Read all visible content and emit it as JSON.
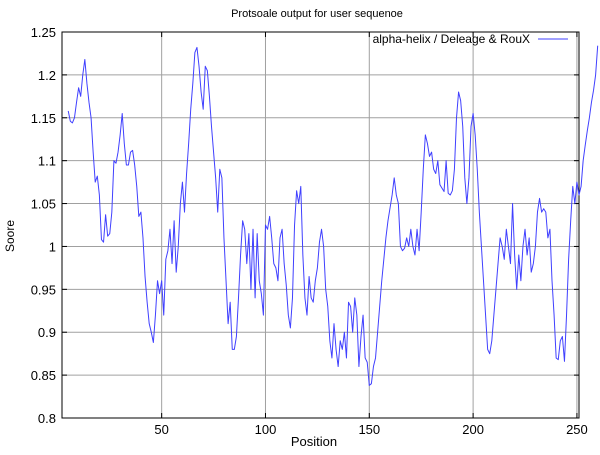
{
  "chart_data": {
    "type": "line",
    "title": "Protsoale output for user sequenoe",
    "xlabel": "Position",
    "ylabel": "Soore",
    "xlim": [
      2,
      251
    ],
    "ylim": [
      0.8,
      1.25
    ],
    "x_ticks": [
      50,
      100,
      150,
      200,
      250
    ],
    "x_tick_labels": [
      "50",
      "100",
      "150",
      "200",
      "250"
    ],
    "y_ticks": [
      0.8,
      0.85,
      0.9,
      0.95,
      1.0,
      1.05,
      1.1,
      1.15,
      1.2,
      1.25
    ],
    "y_tick_labels": [
      "0.8",
      "0.85",
      "0.9",
      "0.95",
      "1",
      "1.05",
      "1.1",
      "1.15",
      "1.2",
      "1.25"
    ],
    "grid": true,
    "legend_position": "top-right",
    "series": [
      {
        "name": "alpha-helix / Deleage & RouX",
        "color": "#4040ff",
        "x_start": 5,
        "x_step": 1,
        "values": [
          1.158,
          1.146,
          1.144,
          1.15,
          1.168,
          1.185,
          1.175,
          1.2,
          1.218,
          1.19,
          1.168,
          1.15,
          1.11,
          1.075,
          1.082,
          1.06,
          1.008,
          1.005,
          1.037,
          1.012,
          1.015,
          1.04,
          1.1,
          1.097,
          1.11,
          1.13,
          1.155,
          1.12,
          1.095,
          1.095,
          1.11,
          1.112,
          1.095,
          1.07,
          1.035,
          1.04,
          1.01,
          0.965,
          0.935,
          0.91,
          0.9,
          0.888,
          0.92,
          0.96,
          0.945,
          0.96,
          0.92,
          0.985,
          0.995,
          1.02,
          0.98,
          1.03,
          0.97,
          1.0,
          1.05,
          1.075,
          1.04,
          1.085,
          1.12,
          1.16,
          1.19,
          1.226,
          1.232,
          1.21,
          1.18,
          1.16,
          1.21,
          1.205,
          1.175,
          1.14,
          1.11,
          1.08,
          1.04,
          1.09,
          1.08,
          1.01,
          0.96,
          0.91,
          0.935,
          0.88,
          0.88,
          0.895,
          0.94,
          0.99,
          1.03,
          1.02,
          0.98,
          1.015,
          0.95,
          1.02,
          0.94,
          1.015,
          0.96,
          0.945,
          0.92,
          1.025,
          1.02,
          1.035,
          1.01,
          0.98,
          0.975,
          0.96,
          1.01,
          1.02,
          0.98,
          0.955,
          0.92,
          0.905,
          0.94,
          1.025,
          1.065,
          1.05,
          1.07,
          0.99,
          0.94,
          0.92,
          0.965,
          0.94,
          0.935,
          0.96,
          0.975,
          1.005,
          1.02,
          1.0,
          0.95,
          0.93,
          0.89,
          0.87,
          0.91,
          0.88,
          0.86,
          0.89,
          0.88,
          0.9,
          0.87,
          0.935,
          0.93,
          0.9,
          0.94,
          0.92,
          0.86,
          0.895,
          0.92,
          0.87,
          0.865,
          0.838,
          0.84,
          0.86,
          0.87,
          0.9,
          0.93,
          0.96,
          0.985,
          1.01,
          1.03,
          1.045,
          1.06,
          1.08,
          1.06,
          1.05,
          1.0,
          0.995,
          0.998,
          1.01,
          1.0,
          1.02,
          1.0,
          0.99,
          1.02,
          0.995,
          1.04,
          1.09,
          1.13,
          1.12,
          1.105,
          1.11,
          1.09,
          1.085,
          1.1,
          1.072,
          1.068,
          1.064,
          1.1,
          1.062,
          1.06,
          1.065,
          1.09,
          1.15,
          1.18,
          1.17,
          1.14,
          1.08,
          1.05,
          1.08,
          1.14,
          1.155,
          1.13,
          1.09,
          1.04,
          1.0,
          0.96,
          0.92,
          0.88,
          0.875,
          0.89,
          0.92,
          0.95,
          0.98,
          1.01,
          1.0,
          0.985,
          1.02,
          1.0,
          0.98,
          1.05,
          0.99,
          0.95,
          0.99,
          0.96,
          1.0,
          1.02,
          0.99,
          1.01,
          0.97,
          0.98,
          1.0,
          1.04,
          1.056,
          1.04,
          1.044,
          1.04,
          1.01,
          1.02,
          0.96,
          0.92,
          0.87,
          0.868,
          0.89,
          0.895,
          0.866,
          0.92,
          0.985,
          1.03,
          1.07,
          1.05,
          1.075,
          1.06,
          1.07,
          1.1,
          1.118,
          1.135,
          1.15,
          1.168,
          1.182,
          1.2,
          1.234
        ]
      }
    ]
  }
}
